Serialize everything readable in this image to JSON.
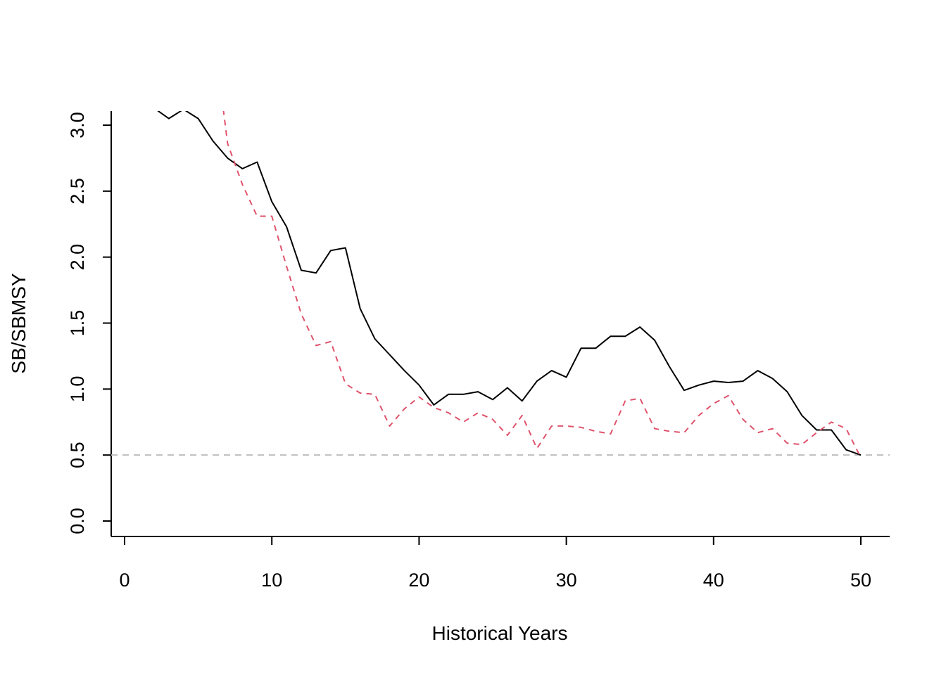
{
  "chart_data": {
    "type": "line",
    "title": "",
    "xlabel": "Historical Years",
    "ylabel": "SB/SBMSY",
    "xlim": [
      -1,
      52
    ],
    "ylim": [
      -0.1,
      3.12
    ],
    "xticks": [
      0,
      10,
      20,
      30,
      40,
      50
    ],
    "yticks": [
      0.0,
      0.5,
      1.0,
      1.5,
      2.0,
      2.5,
      3.0
    ],
    "xtick_labels": [
      "0",
      "10",
      "20",
      "30",
      "40",
      "50"
    ],
    "ytick_labels": [
      "0.0",
      "0.5",
      "1.0",
      "1.5",
      "2.0",
      "2.5",
      "3.0"
    ],
    "grid": false,
    "legend": "none",
    "reference_line": {
      "y": 0.5,
      "color": "#bebebe",
      "style": "dashed"
    },
    "series": [
      {
        "color": "#000000",
        "style": "solid",
        "x": [
          2,
          3,
          4,
          5,
          6,
          7,
          8,
          9,
          10,
          11,
          12,
          13,
          14,
          15,
          16,
          17,
          18,
          19,
          20,
          21,
          22,
          23,
          24,
          25,
          26,
          27,
          28,
          29,
          30,
          31,
          32,
          33,
          34,
          35,
          36,
          37,
          38,
          39,
          40,
          41,
          42,
          43,
          44,
          45,
          46,
          47,
          48,
          49,
          50
        ],
        "values": [
          3.13,
          3.05,
          3.12,
          3.05,
          2.88,
          2.75,
          2.67,
          2.72,
          2.42,
          2.23,
          1.9,
          1.88,
          2.05,
          2.07,
          1.61,
          1.38,
          1.26,
          1.14,
          1.03,
          0.88,
          0.96,
          0.96,
          0.98,
          0.92,
          1.01,
          0.91,
          1.06,
          1.14,
          1.09,
          1.31,
          1.31,
          1.4,
          1.4,
          1.47,
          1.37,
          1.17,
          0.99,
          1.03,
          1.06,
          1.05,
          1.06,
          1.14,
          1.08,
          0.98,
          0.8,
          0.69,
          0.69,
          0.54,
          0.5
        ]
      },
      {
        "color": "#DF536B",
        "style": "dashed",
        "x": [
          6.7,
          7,
          8,
          9,
          10,
          11,
          12,
          13,
          14,
          15,
          16,
          17,
          18,
          19,
          20,
          21,
          22,
          23,
          24,
          25,
          26,
          27,
          28,
          29,
          30,
          31,
          32,
          33,
          34,
          35,
          36,
          37,
          38,
          39,
          40,
          41,
          42,
          43,
          44,
          45,
          46,
          47,
          48,
          49,
          50
        ],
        "values": [
          3.12,
          2.86,
          2.55,
          2.31,
          2.31,
          1.93,
          1.57,
          1.33,
          1.36,
          1.04,
          0.97,
          0.96,
          0.72,
          0.85,
          0.94,
          0.86,
          0.82,
          0.75,
          0.82,
          0.77,
          0.65,
          0.8,
          0.55,
          0.72,
          0.72,
          0.71,
          0.68,
          0.66,
          0.91,
          0.93,
          0.7,
          0.68,
          0.67,
          0.8,
          0.89,
          0.95,
          0.77,
          0.67,
          0.7,
          0.59,
          0.58,
          0.67,
          0.75,
          0.7,
          0.48
        ]
      }
    ]
  }
}
